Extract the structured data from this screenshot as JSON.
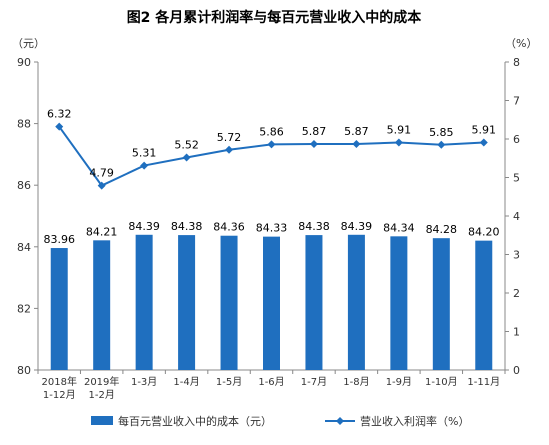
{
  "chart_data": {
    "type": "bar+line",
    "title": "图2  各月累计利润率与每百元营业收入中的成本",
    "left_unit": "（元）",
    "right_unit": "（%）",
    "categories": [
      [
        "2018年",
        "1-12月"
      ],
      [
        "2019年",
        "1-2月"
      ],
      [
        "1-3月"
      ],
      [
        "1-4月"
      ],
      [
        "1-5月"
      ],
      [
        "1-6月"
      ],
      [
        "1-7月"
      ],
      [
        "1-8月"
      ],
      [
        "1-9月"
      ],
      [
        "1-10月"
      ],
      [
        "1-11月"
      ]
    ],
    "left_axis": {
      "min": 80,
      "max": 90,
      "ticks": [
        80,
        82,
        84,
        86,
        88,
        90
      ]
    },
    "right_axis": {
      "min": 0,
      "max": 8,
      "ticks": [
        0,
        1,
        2,
        3,
        4,
        5,
        6,
        7,
        8
      ]
    },
    "series": [
      {
        "name": "每百元营业收入中的成本（元）",
        "type": "bar",
        "axis": "left",
        "color": "#1f6fbf",
        "values": [
          83.96,
          84.21,
          84.39,
          84.38,
          84.36,
          84.33,
          84.38,
          84.39,
          84.34,
          84.28,
          84.2
        ],
        "labels": [
          "83.96",
          "84.21",
          "84.39",
          "84.38",
          "84.36",
          "84.33",
          "84.38",
          "84.39",
          "84.34",
          "84.28",
          "84.20"
        ]
      },
      {
        "name": "营业收入利润率（%）",
        "type": "line",
        "axis": "right",
        "color": "#1f6fbf",
        "marker": "diamond",
        "values": [
          6.32,
          4.79,
          5.31,
          5.52,
          5.72,
          5.86,
          5.87,
          5.87,
          5.91,
          5.85,
          5.91
        ],
        "labels": [
          "6.32",
          "4.79",
          "5.31",
          "5.52",
          "5.72",
          "5.86",
          "5.87",
          "5.87",
          "5.91",
          "5.85",
          "5.91"
        ]
      }
    ],
    "grid": false,
    "legend_position": "bottom"
  }
}
